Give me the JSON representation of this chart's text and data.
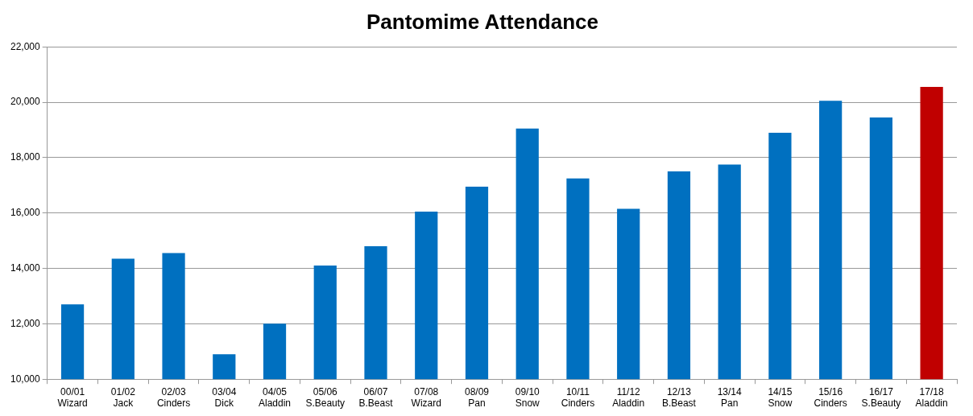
{
  "chart_data": {
    "type": "bar",
    "title": "Pantomime Attendance",
    "categories": [
      "00/01\nWizard",
      "01/02\nJack",
      "02/03\nCinders",
      "03/04\nDick",
      "04/05\nAladdin",
      "05/06\nS.Beauty",
      "06/07\nB.Beast",
      "07/08\nWizard",
      "08/09\nPan",
      "09/10\nSnow",
      "10/11\nCinders",
      "11/12\nAladdin",
      "12/13\nB.Beast",
      "13/14\nPan",
      "14/15\nSnow",
      "15/16\nCinders",
      "16/17\nS.Beauty",
      "17/18\nAladdin"
    ],
    "values": [
      12700,
      14350,
      14550,
      10900,
      12000,
      14100,
      14800,
      16050,
      16950,
      19050,
      17250,
      16150,
      17500,
      17750,
      18900,
      20050,
      19450,
      20550
    ],
    "colors": [
      "#0070c0",
      "#0070c0",
      "#0070c0",
      "#0070c0",
      "#0070c0",
      "#0070c0",
      "#0070c0",
      "#0070c0",
      "#0070c0",
      "#0070c0",
      "#0070c0",
      "#0070c0",
      "#0070c0",
      "#0070c0",
      "#0070c0",
      "#0070c0",
      "#0070c0",
      "#c00000"
    ],
    "ylim": [
      10000,
      22000
    ],
    "yticks": [
      {
        "value": 10000,
        "label": "10,000"
      },
      {
        "value": 12000,
        "label": "12,000"
      },
      {
        "value": 14000,
        "label": "14,000"
      },
      {
        "value": 16000,
        "label": "16,000"
      },
      {
        "value": 18000,
        "label": "18,000"
      },
      {
        "value": 20000,
        "label": "20,000"
      },
      {
        "value": 22000,
        "label": "22,000"
      }
    ],
    "grid": "y",
    "legend": false
  }
}
